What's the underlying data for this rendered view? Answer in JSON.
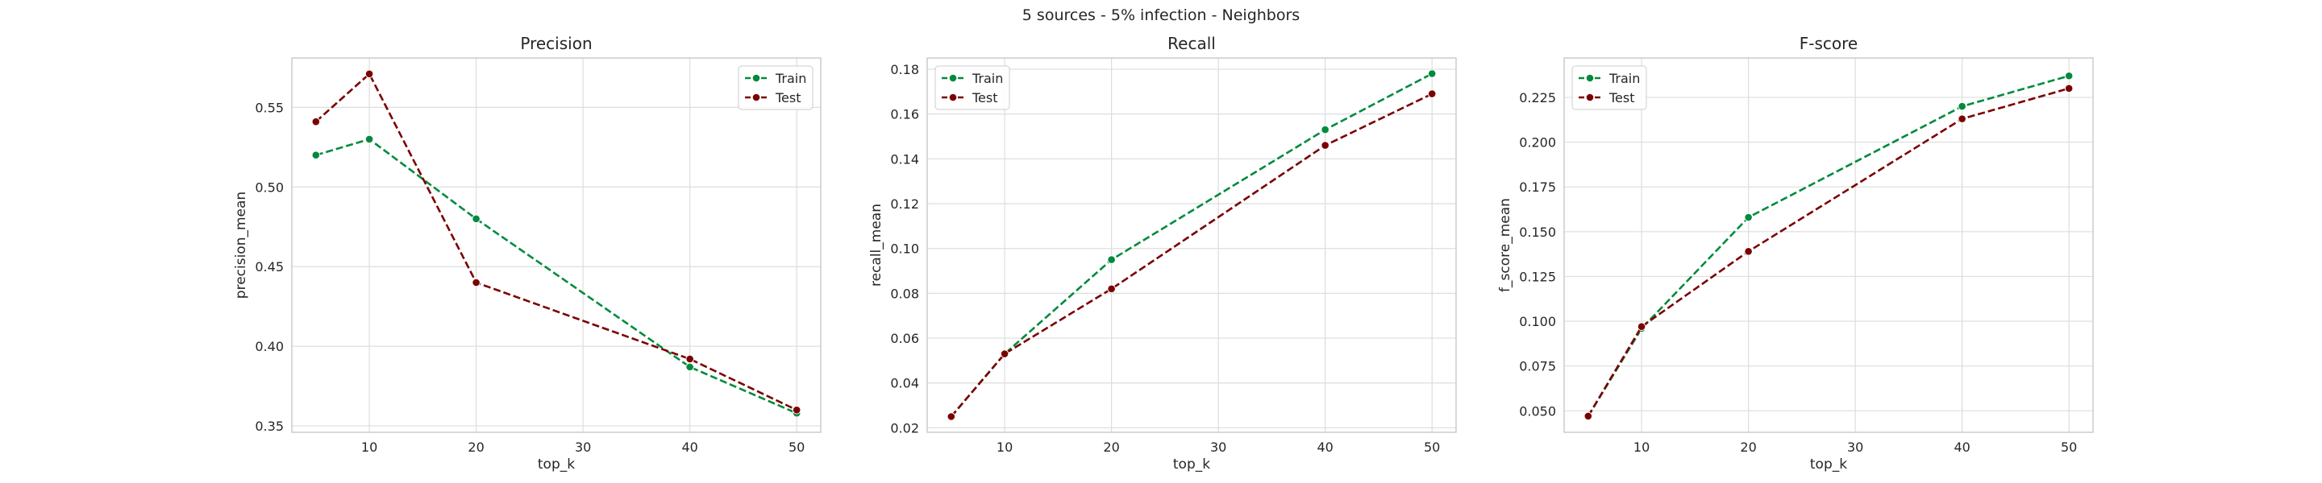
{
  "suptitle": "5 sources - 5% infection - Neighbors",
  "colors": {
    "train": "#008a3e",
    "test": "#7b0000",
    "grid": "#dddddd",
    "frame": "#cccccc",
    "background": "#ffffff"
  },
  "chart_data": [
    {
      "type": "line",
      "title": "Precision",
      "xlabel": "top_k",
      "ylabel": "precision_mean",
      "x": [
        5,
        10,
        20,
        40,
        50
      ],
      "xlim": [
        2.75,
        52.25
      ],
      "ylim": [
        0.346,
        0.581
      ],
      "xticks": [
        10,
        20,
        30,
        40,
        50
      ],
      "yticks": [
        0.35,
        0.4,
        0.45,
        0.5,
        0.55
      ],
      "ytick_labels": [
        "0.35",
        "0.40",
        "0.45",
        "0.50",
        "0.55"
      ],
      "grid": true,
      "legend_position": "upper right",
      "series": [
        {
          "name": "Train",
          "color_key": "train",
          "values": [
            0.52,
            0.53,
            0.48,
            0.387,
            0.358
          ]
        },
        {
          "name": "Test",
          "color_key": "test",
          "values": [
            0.541,
            0.571,
            0.44,
            0.392,
            0.36
          ]
        }
      ]
    },
    {
      "type": "line",
      "title": "Recall",
      "xlabel": "top_k",
      "ylabel": "recall_mean",
      "x": [
        5,
        10,
        20,
        40,
        50
      ],
      "xlim": [
        2.75,
        52.25
      ],
      "ylim": [
        0.018,
        0.185
      ],
      "xticks": [
        10,
        20,
        30,
        40,
        50
      ],
      "yticks": [
        0.02,
        0.04,
        0.06,
        0.08,
        0.1,
        0.12,
        0.14,
        0.16,
        0.18
      ],
      "ytick_labels": [
        "0.02",
        "0.04",
        "0.06",
        "0.08",
        "0.10",
        "0.12",
        "0.14",
        "0.16",
        "0.18"
      ],
      "grid": true,
      "legend_position": "upper left",
      "series": [
        {
          "name": "Train",
          "color_key": "train",
          "values": [
            0.025,
            0.053,
            0.095,
            0.153,
            0.178
          ]
        },
        {
          "name": "Test",
          "color_key": "test",
          "values": [
            0.025,
            0.053,
            0.082,
            0.146,
            0.169
          ]
        }
      ]
    },
    {
      "type": "line",
      "title": "F-score",
      "xlabel": "top_k",
      "ylabel": "f_score_mean",
      "x": [
        5,
        10,
        20,
        40,
        50
      ],
      "xlim": [
        2.75,
        52.25
      ],
      "ylim": [
        0.038,
        0.247
      ],
      "xticks": [
        10,
        20,
        30,
        40,
        50
      ],
      "yticks": [
        0.05,
        0.075,
        0.1,
        0.125,
        0.15,
        0.175,
        0.2,
        0.225
      ],
      "ytick_labels": [
        "0.050",
        "0.075",
        "0.100",
        "0.125",
        "0.150",
        "0.175",
        "0.200",
        "0.225"
      ],
      "grid": true,
      "legend_position": "upper left",
      "series": [
        {
          "name": "Train",
          "color_key": "train",
          "values": [
            0.047,
            0.096,
            0.158,
            0.22,
            0.237
          ]
        },
        {
          "name": "Test",
          "color_key": "test",
          "values": [
            0.047,
            0.097,
            0.139,
            0.213,
            0.23
          ]
        }
      ]
    }
  ]
}
